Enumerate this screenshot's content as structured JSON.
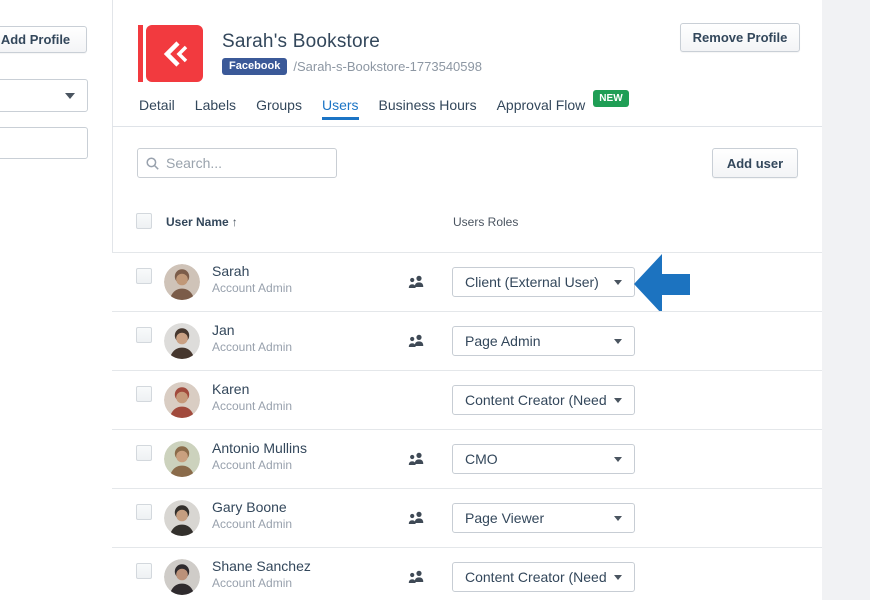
{
  "colors": {
    "accent_blue": "#1b74c5",
    "brand_red": "#f23a3f",
    "facebook_blue": "#3b5998",
    "new_badge_green": "#1f9e55",
    "text_dark": "#33475b",
    "text_gray": "#8d97a3",
    "annotation_arrow_blue": "#1c73c0"
  },
  "sidebar": {
    "add_profile_label": "Add Profile"
  },
  "header": {
    "profile_name": "Sarah's Bookstore",
    "network_badge": "Facebook",
    "profile_slug": "/Sarah-s-Bookstore-1773540598",
    "remove_profile_label": "Remove Profile"
  },
  "tabs": [
    {
      "label": "Detail",
      "active": false
    },
    {
      "label": "Labels",
      "active": false
    },
    {
      "label": "Groups",
      "active": false
    },
    {
      "label": "Users",
      "active": true
    },
    {
      "label": "Business Hours",
      "active": false
    },
    {
      "label": "Approval Flow",
      "active": false,
      "badge": "NEW"
    }
  ],
  "toolbar": {
    "search_placeholder": "Search...",
    "add_user_label": "Add user"
  },
  "table": {
    "header": {
      "user_name": "User Name",
      "sort_arrow": "↑",
      "users_roles": "Users Roles"
    },
    "rows": [
      {
        "name": "Sarah",
        "subtitle": "Account Admin",
        "role_value": "Client (External User)",
        "team_icon": true,
        "annotated": true,
        "avatar": {
          "bg": "#cfc3b8",
          "fg": "#7b5c49",
          "skin": "#c09878"
        }
      },
      {
        "name": "Jan",
        "subtitle": "Account Admin",
        "role_value": "Page Admin",
        "team_icon": true,
        "annotated": false,
        "avatar": {
          "bg": "#dddcda",
          "fg": "#46372e",
          "skin": "#caa184"
        }
      },
      {
        "name": "Karen",
        "subtitle": "Account Admin",
        "role_value": "Content Creator (Need...",
        "team_icon": false,
        "annotated": false,
        "avatar": {
          "bg": "#d9cdc3",
          "fg": "#a14a3c",
          "skin": "#c69a7b"
        }
      },
      {
        "name": "Antonio Mullins",
        "subtitle": "Account Admin",
        "role_value": "CMO",
        "team_icon": true,
        "annotated": false,
        "avatar": {
          "bg": "#ccd2bd",
          "fg": "#8a6b4a",
          "skin": "#c9a07f"
        }
      },
      {
        "name": "Gary Boone",
        "subtitle": "Account Admin",
        "role_value": "Page Viewer",
        "team_icon": true,
        "annotated": false,
        "avatar": {
          "bg": "#d8d6d2",
          "fg": "#33302c",
          "skin": "#c59e80"
        }
      },
      {
        "name": "Shane Sanchez",
        "subtitle": "Account Admin",
        "role_value": "Content Creator (Need...",
        "team_icon": true,
        "annotated": false,
        "avatar": {
          "bg": "#cfccc8",
          "fg": "#2f2b2e",
          "skin": "#bb9179"
        }
      }
    ]
  }
}
